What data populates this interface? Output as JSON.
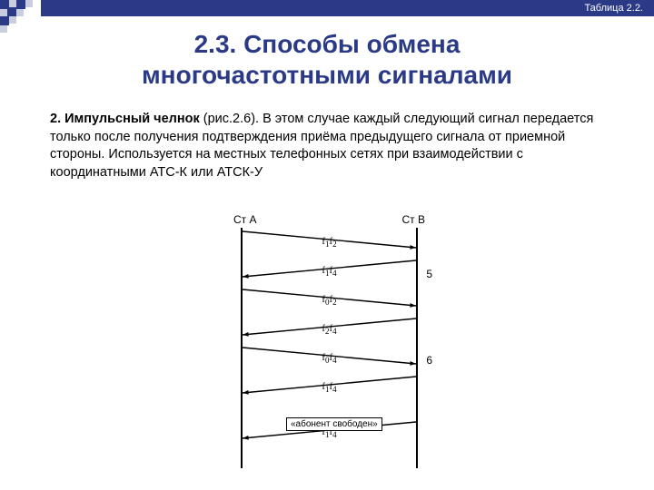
{
  "header": {
    "table_ref": "Таблица 2.2.",
    "title_line1": "2.3. Способы обмена",
    "title_line2": "многочастотными сигналами"
  },
  "paragraph": {
    "lead": "2. Импульсный челнок",
    "ref": " (рис.2.6). ",
    "body": "В этом случае каждый следующий сигнал передается только после получения подтверждения приёма предыдущего сигнала от приемной стороны. Используется на местных телефонных сетях при взаимодействии с координатными АТС-К или АТСК-У"
  },
  "diagram": {
    "station_a": "Ст А",
    "station_b": "Ст В",
    "side_label_1": "5",
    "side_label_2": "6",
    "free_caption": "«абонент свободен»",
    "messages": [
      {
        "dir": "ab",
        "f_a": "1",
        "f_b": "2"
      },
      {
        "dir": "ba",
        "f_a": "1",
        "f_b": "4"
      },
      {
        "dir": "ab",
        "f_a": "0",
        "f_b": "2"
      },
      {
        "dir": "ba",
        "f_a": "2",
        "f_b": "4"
      },
      {
        "dir": "ab",
        "f_a": "0",
        "f_b": "4"
      },
      {
        "dir": "ba",
        "f_a": "1",
        "f_b": "4"
      },
      {
        "dir": "ba",
        "f_a": "1",
        "f_b": "4"
      }
    ],
    "colors": {
      "bar": "#2b3a86",
      "line": "#000000",
      "bg": "#ffffff"
    }
  }
}
